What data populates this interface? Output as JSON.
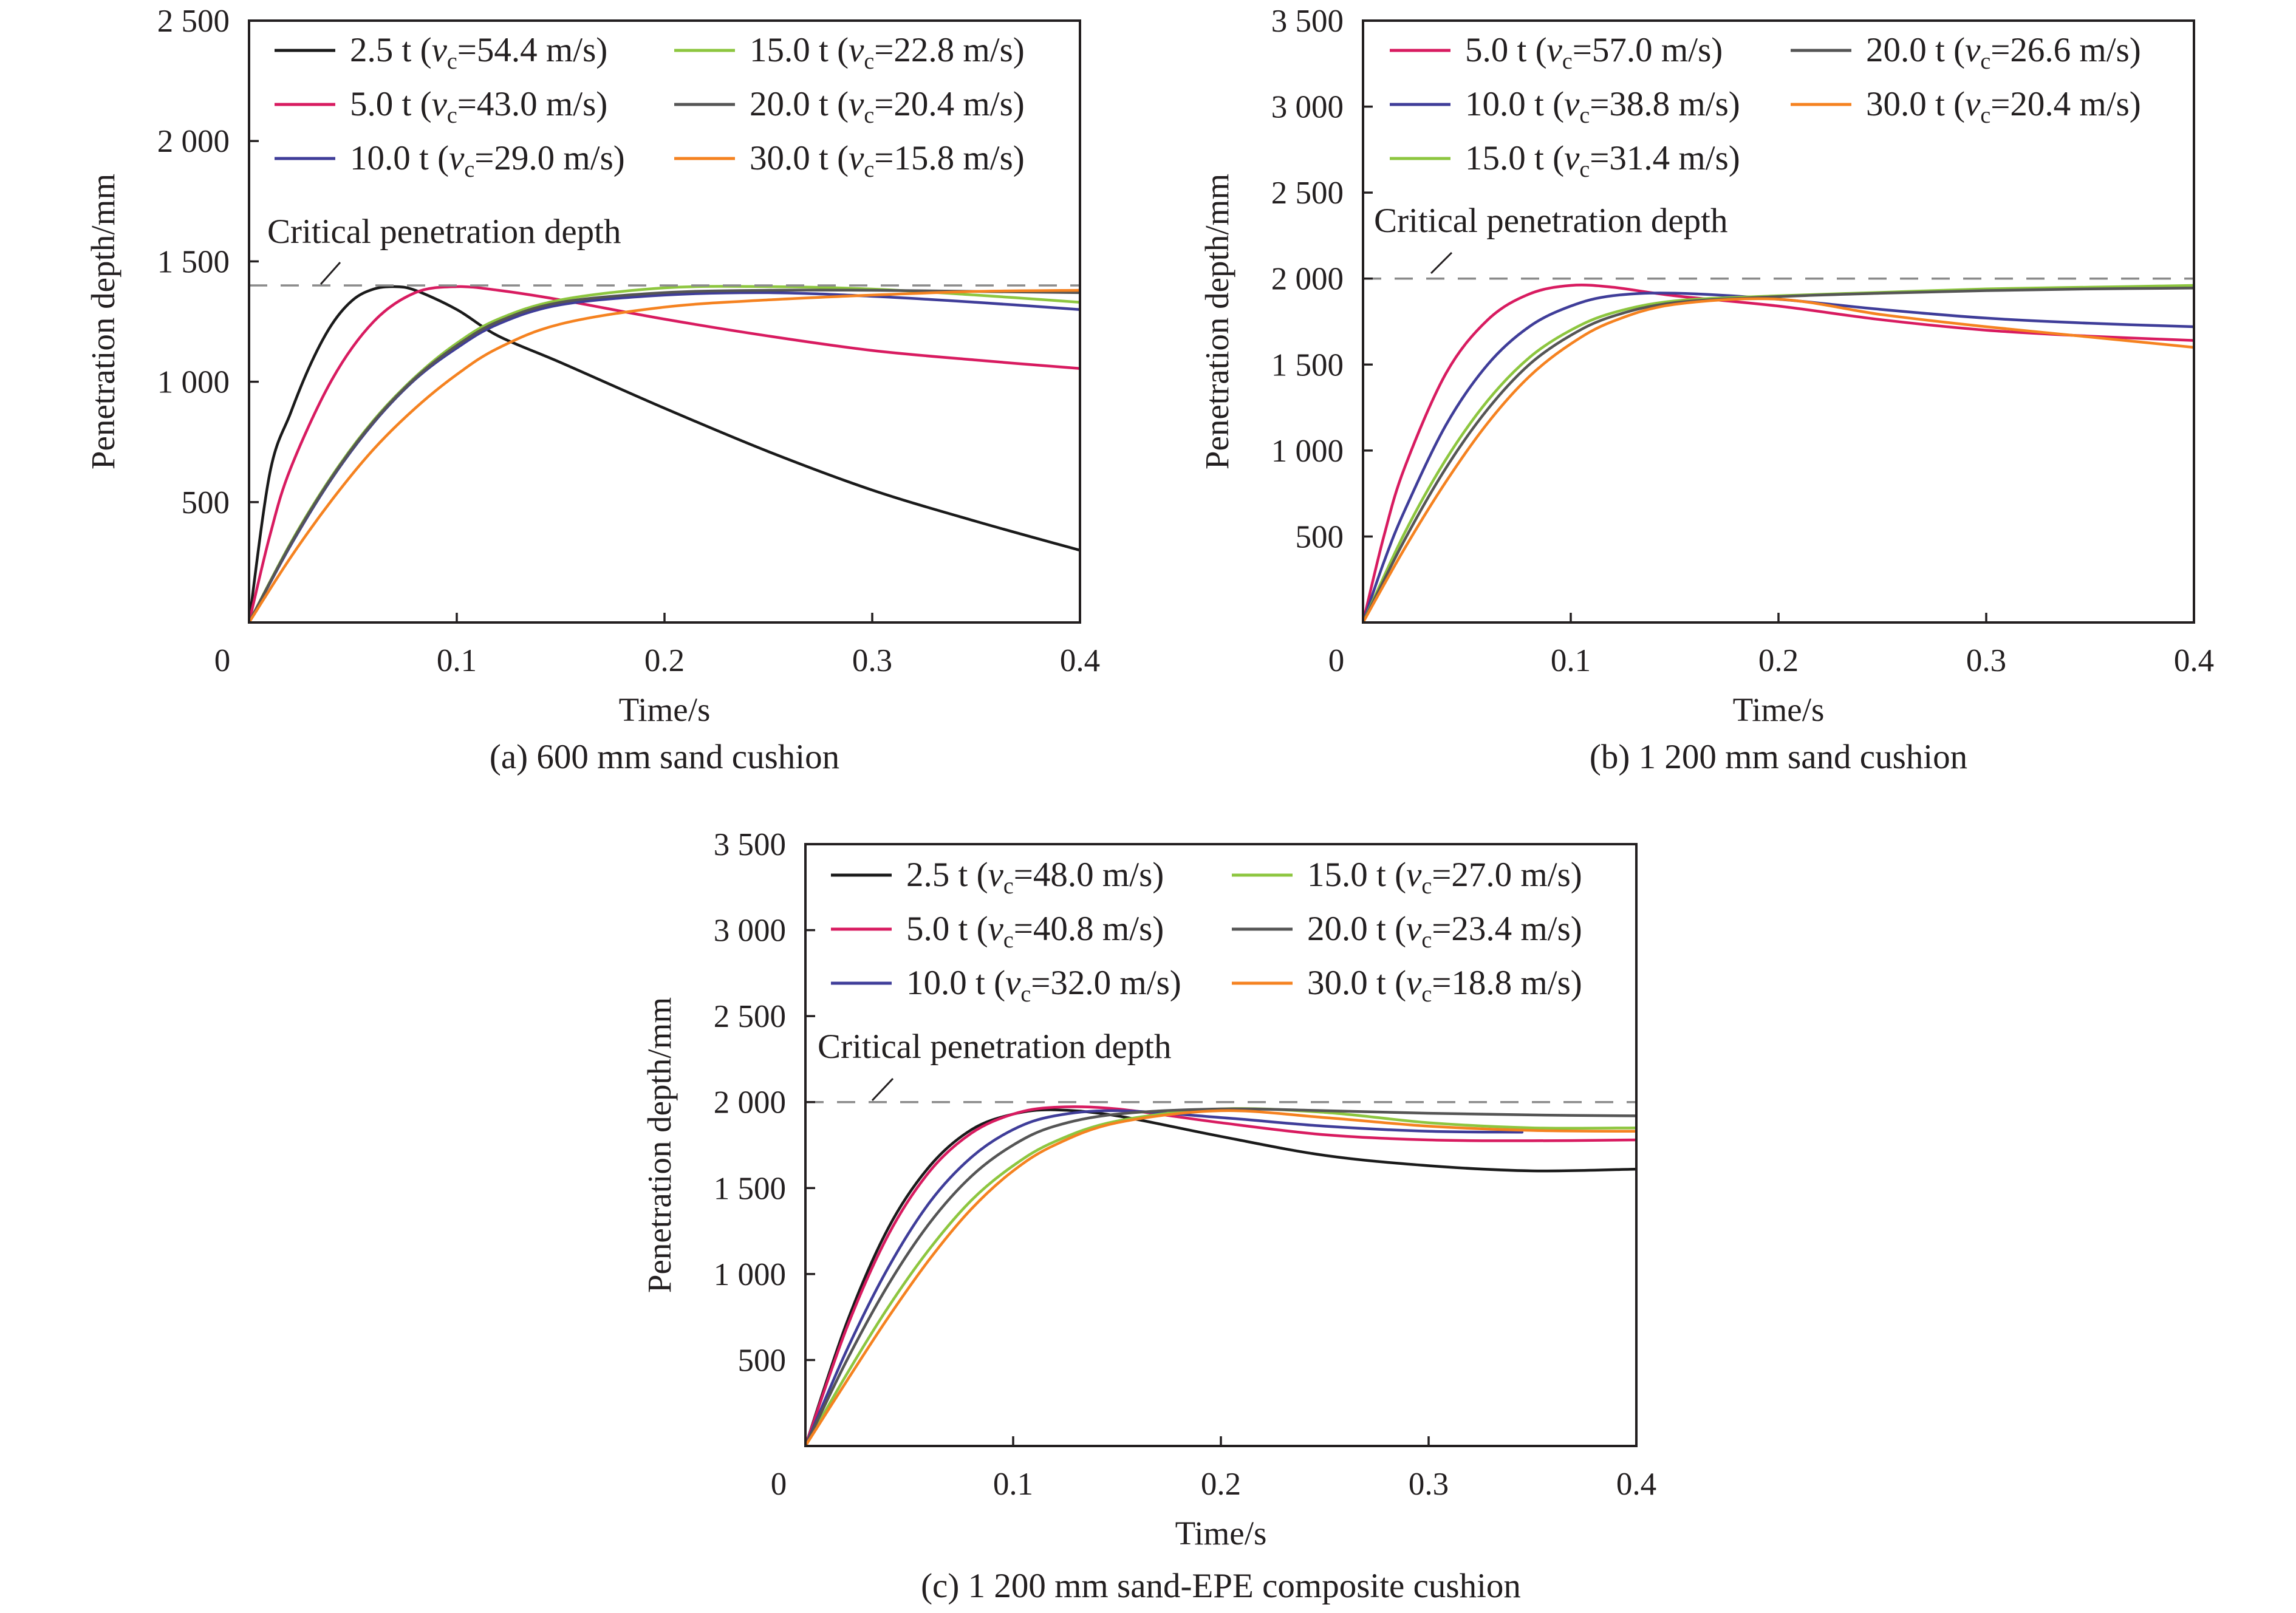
{
  "chart_data": [
    {
      "type": "line",
      "caption": "(a) 600 mm sand cushion",
      "xlabel": "Time/s",
      "ylabel": "Penetration depth/mm",
      "xlim": [
        0,
        0.4
      ],
      "ylim": [
        0,
        2500
      ],
      "x_ticks": [
        "0",
        "0.1",
        "0.2",
        "0.3",
        "0.4"
      ],
      "y_ticks": [
        "500",
        "1 000",
        "1 500",
        "2 000",
        "2 500"
      ],
      "reference": {
        "label": "Critical penetration depth",
        "value": 1400
      },
      "series": [
        {
          "mass": "2.5 t",
          "vc": "54.4 m/s",
          "color": "#1a1a1a",
          "points": [
            [
              0,
              0
            ],
            [
              0.01,
              620
            ],
            [
              0.02,
              870
            ],
            [
              0.03,
              1080
            ],
            [
              0.04,
              1240
            ],
            [
              0.05,
              1340
            ],
            [
              0.06,
              1385
            ],
            [
              0.07,
              1395
            ],
            [
              0.08,
              1380
            ],
            [
              0.1,
              1300
            ],
            [
              0.12,
              1190
            ],
            [
              0.15,
              1080
            ],
            [
              0.2,
              890
            ],
            [
              0.25,
              710
            ],
            [
              0.3,
              550
            ],
            [
              0.35,
              420
            ],
            [
              0.4,
              300
            ]
          ]
        },
        {
          "mass": "5.0 t",
          "vc": "43.0 m/s",
          "color": "#d81b60",
          "points": [
            [
              0,
              0
            ],
            [
              0.01,
              360
            ],
            [
              0.02,
              640
            ],
            [
              0.04,
              1010
            ],
            [
              0.06,
              1250
            ],
            [
              0.08,
              1370
            ],
            [
              0.1,
              1395
            ],
            [
              0.12,
              1380
            ],
            [
              0.15,
              1340
            ],
            [
              0.2,
              1260
            ],
            [
              0.25,
              1190
            ],
            [
              0.3,
              1130
            ],
            [
              0.35,
              1090
            ],
            [
              0.4,
              1055
            ]
          ]
        },
        {
          "mass": "10.0 t",
          "vc": "29.0 m/s",
          "color": "#3f3d99",
          "points": [
            [
              0,
              0
            ],
            [
              0.02,
              320
            ],
            [
              0.04,
              600
            ],
            [
              0.06,
              830
            ],
            [
              0.08,
              1010
            ],
            [
              0.1,
              1140
            ],
            [
              0.12,
              1240
            ],
            [
              0.15,
              1320
            ],
            [
              0.2,
              1360
            ],
            [
              0.25,
              1370
            ],
            [
              0.3,
              1355
            ],
            [
              0.35,
              1330
            ],
            [
              0.4,
              1300
            ]
          ]
        },
        {
          "mass": "15.0 t",
          "vc": "22.8 m/s",
          "color": "#8dc63f",
          "points": [
            [
              0,
              0
            ],
            [
              0.02,
              330
            ],
            [
              0.04,
              610
            ],
            [
              0.06,
              840
            ],
            [
              0.08,
              1020
            ],
            [
              0.1,
              1160
            ],
            [
              0.12,
              1260
            ],
            [
              0.15,
              1340
            ],
            [
              0.2,
              1390
            ],
            [
              0.25,
              1395
            ],
            [
              0.3,
              1385
            ],
            [
              0.35,
              1360
            ],
            [
              0.4,
              1330
            ]
          ]
        },
        {
          "mass": "20.0 t",
          "vc": "20.4 m/s",
          "color": "#555555",
          "points": [
            [
              0,
              0
            ],
            [
              0.02,
              325
            ],
            [
              0.04,
              605
            ],
            [
              0.06,
              835
            ],
            [
              0.08,
              1015
            ],
            [
              0.1,
              1150
            ],
            [
              0.12,
              1250
            ],
            [
              0.15,
              1330
            ],
            [
              0.2,
              1370
            ],
            [
              0.25,
              1380
            ],
            [
              0.3,
              1380
            ],
            [
              0.35,
              1375
            ],
            [
              0.4,
              1370
            ]
          ]
        },
        {
          "mass": "30.0 t",
          "vc": "15.8 m/s",
          "color": "#f58220",
          "points": [
            [
              0,
              0
            ],
            [
              0.02,
              270
            ],
            [
              0.04,
              510
            ],
            [
              0.06,
              720
            ],
            [
              0.08,
              890
            ],
            [
              0.1,
              1030
            ],
            [
              0.12,
              1140
            ],
            [
              0.15,
              1240
            ],
            [
              0.2,
              1310
            ],
            [
              0.25,
              1340
            ],
            [
              0.3,
              1360
            ],
            [
              0.35,
              1375
            ],
            [
              0.4,
              1380
            ]
          ]
        }
      ]
    },
    {
      "type": "line",
      "caption": "(b) 1 200 mm sand cushion",
      "xlabel": "Time/s",
      "ylabel": "Penetration depth/mm",
      "xlim": [
        0,
        0.4
      ],
      "ylim": [
        0,
        3500
      ],
      "x_ticks": [
        "0",
        "0.1",
        "0.2",
        "0.3",
        "0.4"
      ],
      "y_ticks": [
        "500",
        "1 000",
        "1 500",
        "2 000",
        "2 500",
        "3 000",
        "3 500"
      ],
      "reference": {
        "label": "Critical penetration depth",
        "value": 2000
      },
      "series": [
        {
          "mass": "5.0 t",
          "vc": "57.0 m/s",
          "color": "#d81b60",
          "points": [
            [
              0,
              0
            ],
            [
              0.01,
              500
            ],
            [
              0.02,
              900
            ],
            [
              0.04,
              1450
            ],
            [
              0.06,
              1760
            ],
            [
              0.08,
              1910
            ],
            [
              0.1,
              1960
            ],
            [
              0.12,
              1950
            ],
            [
              0.15,
              1900
            ],
            [
              0.2,
              1840
            ],
            [
              0.25,
              1760
            ],
            [
              0.3,
              1700
            ],
            [
              0.35,
              1665
            ],
            [
              0.4,
              1640
            ]
          ]
        },
        {
          "mass": "10.0 t",
          "vc": "38.8 m/s",
          "color": "#3f3d99",
          "points": [
            [
              0,
              0
            ],
            [
              0.01,
              350
            ],
            [
              0.02,
              650
            ],
            [
              0.04,
              1150
            ],
            [
              0.06,
              1500
            ],
            [
              0.08,
              1720
            ],
            [
              0.1,
              1840
            ],
            [
              0.12,
              1900
            ],
            [
              0.15,
              1915
            ],
            [
              0.2,
              1880
            ],
            [
              0.25,
              1820
            ],
            [
              0.3,
              1770
            ],
            [
              0.35,
              1740
            ],
            [
              0.4,
              1720
            ]
          ]
        },
        {
          "mass": "15.0 t",
          "vc": "31.4 m/s",
          "color": "#8dc63f",
          "points": [
            [
              0,
              0
            ],
            [
              0.02,
              520
            ],
            [
              0.04,
              950
            ],
            [
              0.06,
              1290
            ],
            [
              0.08,
              1540
            ],
            [
              0.1,
              1700
            ],
            [
              0.12,
              1800
            ],
            [
              0.15,
              1870
            ],
            [
              0.2,
              1900
            ],
            [
              0.25,
              1920
            ],
            [
              0.3,
              1940
            ],
            [
              0.35,
              1950
            ],
            [
              0.4,
              1960
            ]
          ]
        },
        {
          "mass": "20.0 t",
          "vc": "26.6 m/s",
          "color": "#555555",
          "points": [
            [
              0,
              0
            ],
            [
              0.02,
              480
            ],
            [
              0.04,
              900
            ],
            [
              0.06,
              1240
            ],
            [
              0.08,
              1500
            ],
            [
              0.1,
              1670
            ],
            [
              0.12,
              1780
            ],
            [
              0.15,
              1860
            ],
            [
              0.2,
              1895
            ],
            [
              0.25,
              1915
            ],
            [
              0.3,
              1930
            ],
            [
              0.35,
              1940
            ],
            [
              0.4,
              1945
            ]
          ]
        },
        {
          "mass": "30.0 t",
          "vc": "20.4 m/s",
          "color": "#f58220",
          "points": [
            [
              0,
              0
            ],
            [
              0.02,
              430
            ],
            [
              0.04,
              820
            ],
            [
              0.06,
              1160
            ],
            [
              0.08,
              1430
            ],
            [
              0.1,
              1620
            ],
            [
              0.12,
              1750
            ],
            [
              0.15,
              1850
            ],
            [
              0.2,
              1880
            ],
            [
              0.25,
              1790
            ],
            [
              0.3,
              1720
            ],
            [
              0.35,
              1660
            ],
            [
              0.4,
              1600
            ]
          ]
        }
      ]
    },
    {
      "type": "line",
      "caption": "(c) 1 200 mm sand-EPE composite cushion",
      "xlabel": "Time/s",
      "ylabel": "Penetration depth/mm",
      "xlim": [
        0,
        0.4
      ],
      "ylim": [
        0,
        3500
      ],
      "x_ticks": [
        "0",
        "0.1",
        "0.2",
        "0.3",
        "0.4"
      ],
      "y_ticks": [
        "500",
        "1 000",
        "1 500",
        "2 000",
        "2 500",
        "3 000",
        "3 500"
      ],
      "reference": {
        "label": "Critical penetration depth",
        "value": 2000
      },
      "series": [
        {
          "mass": "2.5 t",
          "vc": "48.0 m/s",
          "color": "#1a1a1a",
          "points": [
            [
              0,
              0
            ],
            [
              0.02,
              720
            ],
            [
              0.04,
              1270
            ],
            [
              0.06,
              1630
            ],
            [
              0.08,
              1840
            ],
            [
              0.1,
              1930
            ],
            [
              0.12,
              1955
            ],
            [
              0.15,
              1920
            ],
            [
              0.2,
              1800
            ],
            [
              0.25,
              1690
            ],
            [
              0.3,
              1630
            ],
            [
              0.35,
              1600
            ],
            [
              0.4,
              1610
            ]
          ]
        },
        {
          "mass": "5.0 t",
          "vc": "40.8 m/s",
          "color": "#d81b60",
          "points": [
            [
              0,
              0
            ],
            [
              0.02,
              690
            ],
            [
              0.04,
              1230
            ],
            [
              0.06,
              1600
            ],
            [
              0.08,
              1820
            ],
            [
              0.1,
              1930
            ],
            [
              0.12,
              1970
            ],
            [
              0.15,
              1960
            ],
            [
              0.2,
              1880
            ],
            [
              0.25,
              1810
            ],
            [
              0.3,
              1780
            ],
            [
              0.35,
              1775
            ],
            [
              0.4,
              1780
            ]
          ]
        },
        {
          "mass": "10.0 t",
          "vc": "32.0 m/s",
          "color": "#3f3d99",
          "points": [
            [
              0,
              0
            ],
            [
              0.02,
              560
            ],
            [
              0.04,
              1040
            ],
            [
              0.06,
              1420
            ],
            [
              0.08,
              1680
            ],
            [
              0.1,
              1840
            ],
            [
              0.12,
              1920
            ],
            [
              0.15,
              1950
            ],
            [
              0.2,
              1910
            ],
            [
              0.25,
              1860
            ],
            [
              0.3,
              1830
            ],
            [
              0.345,
              1825
            ]
          ]
        },
        {
          "mass": "15.0 t",
          "vc": "27.0 m/s",
          "color": "#8dc63f",
          "points": [
            [
              0,
              0
            ],
            [
              0.02,
              420
            ],
            [
              0.04,
              810
            ],
            [
              0.06,
              1150
            ],
            [
              0.08,
              1430
            ],
            [
              0.1,
              1630
            ],
            [
              0.12,
              1770
            ],
            [
              0.15,
              1890
            ],
            [
              0.2,
              1960
            ],
            [
              0.25,
              1940
            ],
            [
              0.3,
              1880
            ],
            [
              0.35,
              1850
            ],
            [
              0.4,
              1850
            ]
          ]
        },
        {
          "mass": "20.0 t",
          "vc": "23.4 m/s",
          "color": "#555555",
          "points": [
            [
              0,
              0
            ],
            [
              0.02,
              500
            ],
            [
              0.04,
              940
            ],
            [
              0.06,
              1300
            ],
            [
              0.08,
              1570
            ],
            [
              0.1,
              1750
            ],
            [
              0.12,
              1860
            ],
            [
              0.15,
              1930
            ],
            [
              0.2,
              1960
            ],
            [
              0.25,
              1950
            ],
            [
              0.3,
              1935
            ],
            [
              0.35,
              1925
            ],
            [
              0.4,
              1920
            ]
          ]
        },
        {
          "mass": "30.0 t",
          "vc": "18.8 m/s",
          "color": "#f58220",
          "points": [
            [
              0,
              0
            ],
            [
              0.02,
              380
            ],
            [
              0.04,
              750
            ],
            [
              0.06,
              1090
            ],
            [
              0.08,
              1380
            ],
            [
              0.1,
              1600
            ],
            [
              0.12,
              1750
            ],
            [
              0.15,
              1880
            ],
            [
              0.2,
              1950
            ],
            [
              0.25,
              1910
            ],
            [
              0.3,
              1860
            ],
            [
              0.35,
              1835
            ],
            [
              0.4,
              1830
            ]
          ]
        }
      ]
    }
  ]
}
